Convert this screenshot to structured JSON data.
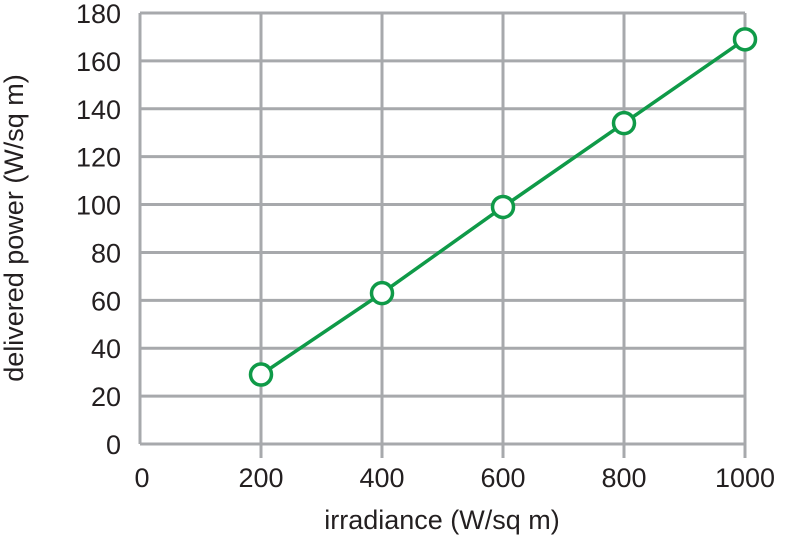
{
  "chart_data": {
    "type": "line",
    "title": "",
    "xlabel": "irradiance (W/sq m)",
    "ylabel": "delivered power (W/sq m)",
    "xlim": [
      0,
      1000
    ],
    "ylim": [
      0,
      180
    ],
    "x_ticks": [
      "0",
      "200",
      "400",
      "600",
      "800",
      "1000"
    ],
    "y_ticks": [
      "0",
      "20",
      "40",
      "60",
      "80",
      "100",
      "120",
      "140",
      "160",
      "180"
    ],
    "grid": true,
    "series": [
      {
        "x": [
          200,
          400,
          600,
          800,
          1000
        ],
        "values": [
          29,
          63,
          99,
          134,
          169
        ],
        "color": "#0f9a48",
        "marker": "open-circle"
      }
    ],
    "colors": {
      "grid": "#a7a9ac",
      "text": "#231f20",
      "line": "#0f9a48"
    }
  }
}
